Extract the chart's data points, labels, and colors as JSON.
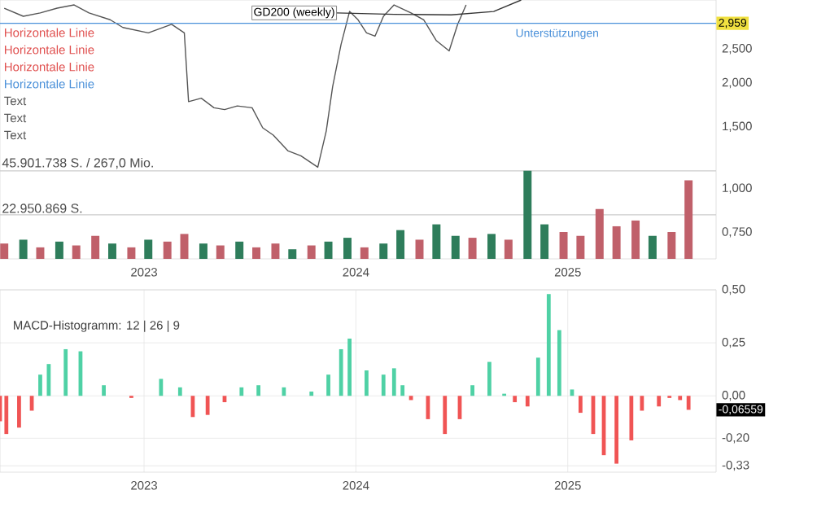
{
  "chart_data": [
    {
      "type": "line",
      "xlim": [
        2022.32,
        2025.7
      ],
      "xticks": [
        2023,
        2024,
        2025
      ],
      "ylim": [
        0.63,
        3.45
      ],
      "log": "y",
      "yticks": [
        {
          "value": 0.75,
          "label": "0,750"
        },
        {
          "value": 1,
          "label": "1,000"
        },
        {
          "value": 1.5,
          "label": "1,500"
        },
        {
          "value": 2,
          "label": "2,000"
        },
        {
          "value": 2.5,
          "label": "2,500"
        }
      ],
      "y2lim": [
        0,
        135000000
      ],
      "series": [
        {
          "type": "line",
          "color": "#555555",
          "x": [
            2022.34,
            2022.43,
            2022.51,
            2022.59,
            2022.67,
            2022.74,
            2022.84,
            2022.9,
            2023.02,
            2023.13,
            2023.19,
            2023.21,
            2023.27,
            2023.33,
            2023.38,
            2023.44,
            2023.51,
            2023.56,
            2023.61,
            2023.68,
            2023.74,
            2023.82,
            2023.86,
            2023.89,
            2023.93,
            2023.97,
            2024.01,
            2024.05,
            2024.09,
            2024.13,
            2024.18,
            2024.26,
            2024.32,
            2024.38,
            2024.44,
            2024.48,
            2024.52
          ],
          "values": [
            3.27,
            3.1,
            3.17,
            3.27,
            3.34,
            3.17,
            3.03,
            2.88,
            2.78,
            2.94,
            2.78,
            1.77,
            1.81,
            1.7,
            1.68,
            1.72,
            1.7,
            1.49,
            1.42,
            1.28,
            1.24,
            1.15,
            1.46,
            1.95,
            2.58,
            3.2,
            3.03,
            2.78,
            2.72,
            3.1,
            3.34,
            3.17,
            3.03,
            2.64,
            2.47,
            2.94,
            3.34
          ]
        },
        {
          "name": "GD200 (weekly)",
          "type": "line",
          "color": "#333333",
          "x": [
            2023.91,
            2024.18,
            2024.45,
            2024.65,
            2024.78
          ],
          "values": [
            3.17,
            3.14,
            3.13,
            3.2,
            3.45
          ]
        },
        {
          "type": "bar",
          "axis": "y2",
          "x": [
            2022.34,
            2022.43,
            2022.51,
            2022.6,
            2022.68,
            2022.77,
            2022.85,
            2022.94,
            2023.02,
            2023.11,
            2023.19,
            2023.28,
            2023.36,
            2023.45,
            2023.53,
            2023.62,
            2023.7,
            2023.79,
            2023.87,
            2023.96,
            2024.04,
            2024.13,
            2024.21,
            2024.3,
            2024.38,
            2024.47,
            2024.55,
            2024.64,
            2024.72,
            2024.81,
            2024.89,
            2024.98,
            2025.06,
            2025.15,
            2025.23,
            2025.32,
            2025.4,
            2025.49,
            2025.57
          ],
          "values": [
            8000000,
            10000000,
            6000000,
            9000000,
            7000000,
            12000000,
            8000000,
            6000000,
            10000000,
            9000000,
            13000000,
            8000000,
            7000000,
            9000000,
            6000000,
            8000000,
            5000000,
            7000000,
            9000000,
            11000000,
            6000000,
            8000000,
            15000000,
            10000000,
            18000000,
            12000000,
            11000000,
            13000000,
            10000000,
            46000000,
            18000000,
            14000000,
            12000000,
            26000000,
            17000000,
            20000000,
            12000000,
            14000000,
            41000000
          ],
          "colors": [
            "#c0606a",
            "#2e7d5b",
            "#c0606a",
            "#2e7d5b",
            "#c0606a",
            "#c0606a",
            "#2e7d5b",
            "#c0606a",
            "#2e7d5b",
            "#c0606a",
            "#c0606a",
            "#2e7d5b",
            "#c0606a",
            "#2e7d5b",
            "#c0606a",
            "#c0606a",
            "#2e7d5b",
            "#c0606a",
            "#2e7d5b",
            "#2e7d5b",
            "#c0606a",
            "#2e7d5b",
            "#2e7d5b",
            "#c0606a",
            "#2e7d5b",
            "#2e7d5b",
            "#c0606a",
            "#2e7d5b",
            "#c0606a",
            "#2e7d5b",
            "#2e7d5b",
            "#c0606a",
            "#c0606a",
            "#c0606a",
            "#c0606a",
            "#c0606a",
            "#2e7d5b",
            "#c0606a",
            "#c0606a"
          ]
        }
      ],
      "ref_lines": [
        {
          "axis": "y",
          "value": 2.959,
          "label": "Unterstützungen",
          "color": "#4a90d9"
        },
        {
          "axis": "y2",
          "value": 45901738,
          "label": "45.901.738 S. / 267,0 Mio.",
          "color": "#cccccc"
        },
        {
          "axis": "y2",
          "value": 22950869,
          "label": "22.950.869 S.",
          "color": "#cccccc"
        }
      ],
      "annotations": [
        "Horizontale Linie",
        "Horizontale Linie",
        "Horizontale Linie",
        "Horizontale Linie",
        "Text",
        "Text",
        "Text",
        {
          "text": "2,959",
          "x": 2025.7,
          "y": 2.959
        }
      ]
    },
    {
      "type": "bar",
      "title": "MACD-Histogramm: 12 | 26 | 9",
      "xlim": [
        2022.32,
        2025.7
      ],
      "xticks": [
        2023,
        2024,
        2025
      ],
      "ylim": [
        -0.36,
        0.5
      ],
      "yticks": [
        {
          "value": -0.33,
          "label": "-0,33"
        },
        {
          "value": -0.2,
          "label": "-0,20"
        },
        {
          "value": 0,
          "label": "0,00"
        },
        {
          "value": 0.25,
          "label": "0,25"
        },
        {
          "value": 0.5,
          "label": "0,50"
        }
      ],
      "grid": true,
      "x": [
        2022.32,
        2022.35,
        2022.41,
        2022.47,
        2022.51,
        2022.55,
        2022.63,
        2022.7,
        2022.81,
        2022.91,
        2022.94,
        2023.08,
        2023.17,
        2023.23,
        2023.3,
        2023.38,
        2023.46,
        2023.54,
        2023.66,
        2023.79,
        2023.87,
        2023.93,
        2023.97,
        2024.05,
        2024.13,
        2024.18,
        2024.22,
        2024.26,
        2024.34,
        2024.42,
        2024.49,
        2024.55,
        2024.63,
        2024.7,
        2024.75,
        2024.81,
        2024.86,
        2024.91,
        2024.96,
        2025.02,
        2025.06,
        2025.12,
        2025.17,
        2025.23,
        2025.3,
        2025.35,
        2025.43,
        2025.48,
        2025.53,
        2025.57
      ],
      "values": [
        -0.12,
        -0.18,
        -0.15,
        -0.07,
        0.1,
        0.15,
        0.22,
        0.21,
        0.05,
        0,
        -0.01,
        0.08,
        0.04,
        -0.1,
        -0.09,
        -0.03,
        0.04,
        0.05,
        0.04,
        0.02,
        0.1,
        0.22,
        0.27,
        0.12,
        0.1,
        0.13,
        0.05,
        -0.02,
        -0.11,
        -0.18,
        -0.11,
        0.05,
        0.16,
        0.01,
        -0.03,
        -0.05,
        0.18,
        0.48,
        0.31,
        0.03,
        -0.08,
        -0.18,
        -0.28,
        -0.32,
        -0.21,
        -0.07,
        -0.05,
        -0.01,
        -0.02,
        -0.066
      ],
      "colors": [
        "#f05454",
        "#f05454",
        "#f05454",
        "#f05454",
        "#4fd1a5",
        "#4fd1a5",
        "#4fd1a5",
        "#4fd1a5",
        "#4fd1a5",
        "#4fd1a5",
        "#f05454",
        "#4fd1a5",
        "#4fd1a5",
        "#f05454",
        "#f05454",
        "#f05454",
        "#4fd1a5",
        "#4fd1a5",
        "#4fd1a5",
        "#4fd1a5",
        "#4fd1a5",
        "#4fd1a5",
        "#4fd1a5",
        "#4fd1a5",
        "#4fd1a5",
        "#4fd1a5",
        "#4fd1a5",
        "#f05454",
        "#f05454",
        "#f05454",
        "#f05454",
        "#4fd1a5",
        "#4fd1a5",
        "#4fd1a5",
        "#f05454",
        "#f05454",
        "#4fd1a5",
        "#4fd1a5",
        "#4fd1a5",
        "#4fd1a5",
        "#f05454",
        "#f05454",
        "#f05454",
        "#f05454",
        "#f05454",
        "#f05454",
        "#f05454",
        "#f05454",
        "#f05454",
        "#f05454"
      ],
      "annotations": [
        "-0,06559"
      ]
    }
  ]
}
